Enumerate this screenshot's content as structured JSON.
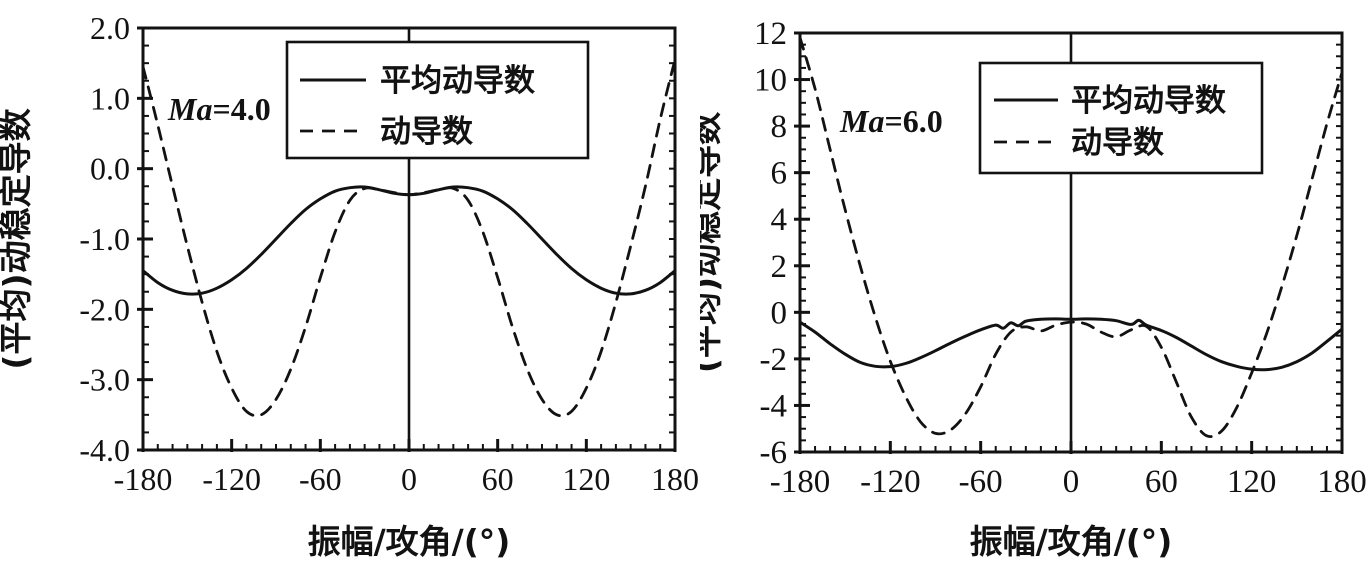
{
  "page": {
    "background": "#ffffff",
    "ink": "#121212"
  },
  "chart_data": [
    {
      "type": "line",
      "title": "",
      "annotation": {
        "italic": "Ma",
        "rest": "=4.0"
      },
      "xlabel": "振幅/攻角/(°)",
      "ylabel": "(平均)动稳定导数",
      "xlim": [
        -180,
        180
      ],
      "ylim": [
        -4,
        2
      ],
      "grid": false,
      "legend_position": "top-center",
      "xticks": {
        "values": [
          -180,
          -120,
          -60,
          0,
          60,
          120,
          180
        ],
        "labels": [
          "-180",
          "-120",
          "-60",
          "0",
          "60",
          "120",
          "180"
        ],
        "minor_step": 10
      },
      "yticks": {
        "values": [
          2,
          1,
          0,
          -1,
          -2,
          -3,
          -4
        ],
        "labels": [
          "2.0",
          "1.0",
          "0.0",
          "-1.0",
          "-2.0",
          "-3.0",
          "-4.0"
        ],
        "minor_step": 0.25
      },
      "center_line_x": 0,
      "legend": {
        "entries": [
          {
            "label": "平均动导数",
            "style": "solid"
          },
          {
            "label": "动导数",
            "style": "dashed"
          }
        ]
      },
      "series": [
        {
          "name": "平均动导数",
          "style": "solid",
          "x": [
            -180,
            -170,
            -160,
            -150,
            -140,
            -130,
            -120,
            -110,
            -100,
            -90,
            -80,
            -70,
            -60,
            -50,
            -40,
            -30,
            -20,
            -10,
            0,
            10,
            20,
            30,
            40,
            50,
            60,
            70,
            80,
            90,
            100,
            110,
            120,
            130,
            140,
            150,
            160,
            170,
            180
          ],
          "y": [
            -1.45,
            -1.62,
            -1.73,
            -1.78,
            -1.77,
            -1.7,
            -1.58,
            -1.42,
            -1.22,
            -1.0,
            -0.78,
            -0.58,
            -0.43,
            -0.32,
            -0.27,
            -0.26,
            -0.3,
            -0.35,
            -0.37,
            -0.35,
            -0.3,
            -0.26,
            -0.27,
            -0.32,
            -0.43,
            -0.58,
            -0.78,
            -1.0,
            -1.22,
            -1.42,
            -1.58,
            -1.7,
            -1.77,
            -1.78,
            -1.73,
            -1.62,
            -1.45
          ]
        },
        {
          "name": "动导数",
          "style": "dashed",
          "x": [
            -180,
            -170,
            -160,
            -150,
            -140,
            -130,
            -120,
            -110,
            -100,
            -90,
            -80,
            -70,
            -60,
            -50,
            -40,
            -30,
            -20,
            -10,
            0,
            10,
            20,
            30,
            40,
            50,
            60,
            70,
            80,
            90,
            100,
            110,
            120,
            130,
            140,
            150,
            160,
            170,
            180
          ],
          "y": [
            1.45,
            0.62,
            -0.25,
            -1.1,
            -1.9,
            -2.6,
            -3.12,
            -3.45,
            -3.5,
            -3.28,
            -2.85,
            -2.25,
            -1.55,
            -0.9,
            -0.45,
            -0.28,
            -0.3,
            -0.34,
            -0.37,
            -0.34,
            -0.3,
            -0.28,
            -0.45,
            -0.9,
            -1.55,
            -2.25,
            -2.85,
            -3.28,
            -3.5,
            -3.45,
            -3.12,
            -2.6,
            -1.9,
            -1.1,
            -0.25,
            0.7,
            1.55
          ]
        }
      ]
    },
    {
      "type": "line",
      "title": "",
      "annotation": {
        "italic": "Ma",
        "rest": "=6.0"
      },
      "xlabel": "振幅/攻角/(°)",
      "ylabel": "(平均)动稳定导数",
      "xlim": [
        -180,
        180
      ],
      "ylim": [
        -6,
        12
      ],
      "grid": false,
      "legend_position": "top-center",
      "xticks": {
        "values": [
          -180,
          -120,
          -60,
          0,
          60,
          120,
          180
        ],
        "labels": [
          "-180",
          "-120",
          "-60",
          "0",
          "60",
          "120",
          "180"
        ],
        "minor_step": 10
      },
      "yticks": {
        "values": [
          12,
          10,
          8,
          6,
          4,
          2,
          0,
          -2,
          -4,
          -6
        ],
        "labels": [
          "12",
          "10",
          "8",
          "6",
          "4",
          "2",
          "0",
          "-2",
          "-4",
          "-6"
        ],
        "minor_step": 0.5
      },
      "center_line_x": 0,
      "legend": {
        "entries": [
          {
            "label": "平均动导数",
            "style": "solid"
          },
          {
            "label": "动导数",
            "style": "dashed"
          }
        ]
      },
      "series": [
        {
          "name": "平均动导数",
          "style": "solid",
          "x": [
            -180,
            -170,
            -160,
            -150,
            -140,
            -130,
            -120,
            -110,
            -100,
            -90,
            -80,
            -70,
            -60,
            -50,
            -45,
            -40,
            -35,
            -30,
            -20,
            -10,
            0,
            10,
            20,
            30,
            40,
            45,
            50,
            60,
            70,
            80,
            90,
            100,
            110,
            120,
            130,
            140,
            150,
            160,
            170,
            180
          ],
          "y": [
            -0.42,
            -0.85,
            -1.35,
            -1.8,
            -2.15,
            -2.32,
            -2.33,
            -2.2,
            -1.95,
            -1.65,
            -1.32,
            -1.02,
            -0.75,
            -0.55,
            -0.68,
            -0.45,
            -0.58,
            -0.38,
            -0.3,
            -0.28,
            -0.3,
            -0.28,
            -0.3,
            -0.36,
            -0.52,
            -0.34,
            -0.55,
            -0.78,
            -1.08,
            -1.45,
            -1.82,
            -2.12,
            -2.32,
            -2.44,
            -2.46,
            -2.36,
            -2.12,
            -1.75,
            -1.25,
            -0.72
          ]
        },
        {
          "name": "动导数",
          "style": "dashed",
          "x": [
            -180,
            -170,
            -160,
            -150,
            -140,
            -130,
            -120,
            -110,
            -100,
            -90,
            -80,
            -70,
            -60,
            -50,
            -40,
            -30,
            -20,
            -10,
            0,
            10,
            20,
            30,
            40,
            50,
            60,
            70,
            80,
            90,
            100,
            110,
            120,
            130,
            140,
            150,
            160,
            170,
            180
          ],
          "y": [
            11.8,
            9.6,
            7.0,
            4.4,
            2.0,
            -0.2,
            -2.1,
            -3.6,
            -4.7,
            -5.2,
            -5.05,
            -4.35,
            -3.2,
            -1.8,
            -0.85,
            -0.62,
            -0.8,
            -0.55,
            -0.42,
            -0.5,
            -0.85,
            -1.05,
            -0.75,
            -0.6,
            -1.5,
            -3.0,
            -4.5,
            -5.3,
            -5.1,
            -4.1,
            -2.6,
            -0.9,
            1.1,
            3.3,
            5.7,
            8.1,
            10.3
          ]
        }
      ]
    }
  ]
}
